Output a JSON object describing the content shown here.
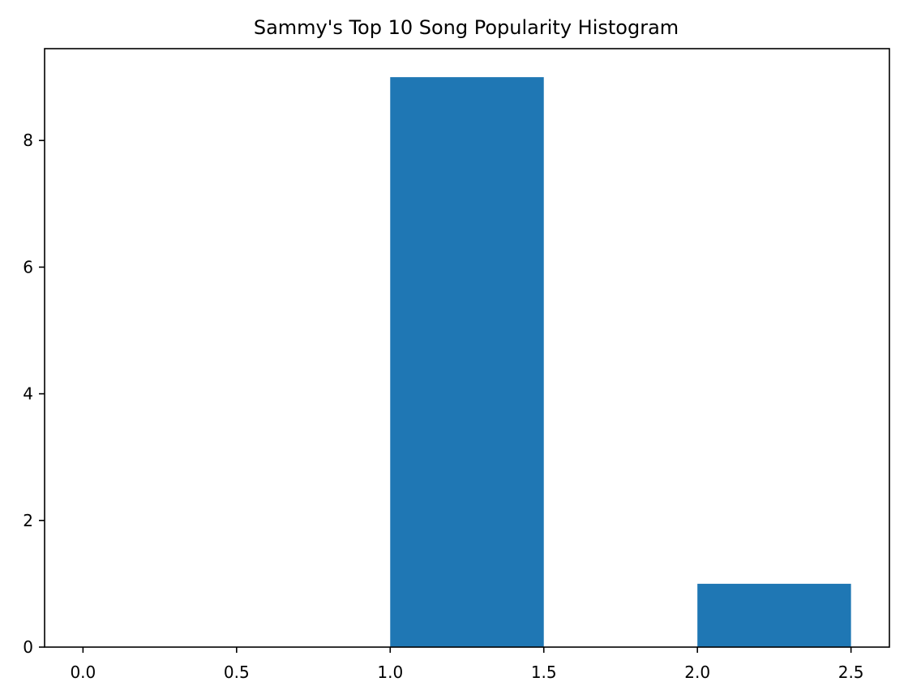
{
  "chart_data": {
    "type": "bar",
    "title": "Sammy's Top 10 Song Popularity Histogram",
    "xlabel": "",
    "ylabel": "",
    "bins": [
      {
        "x_start": 0.0,
        "x_end": 0.5,
        "count": 0
      },
      {
        "x_start": 0.5,
        "x_end": 1.0,
        "count": 0
      },
      {
        "x_start": 1.0,
        "x_end": 1.5,
        "count": 9
      },
      {
        "x_start": 1.5,
        "x_end": 2.0,
        "count": 0
      },
      {
        "x_start": 2.0,
        "x_end": 2.5,
        "count": 1
      }
    ],
    "xlim": [
      -0.125,
      2.625
    ],
    "ylim": [
      0,
      9.45
    ],
    "x_ticks": [
      0.0,
      0.5,
      1.0,
      1.5,
      2.0,
      2.5
    ],
    "x_tick_labels": [
      "0.0",
      "0.5",
      "1.0",
      "1.5",
      "2.0",
      "2.5"
    ],
    "y_ticks": [
      0,
      2,
      4,
      6,
      8
    ],
    "y_tick_labels": [
      "0",
      "2",
      "4",
      "6",
      "8"
    ],
    "bar_color": "#1f77b4",
    "grid": false,
    "legend": "none"
  }
}
